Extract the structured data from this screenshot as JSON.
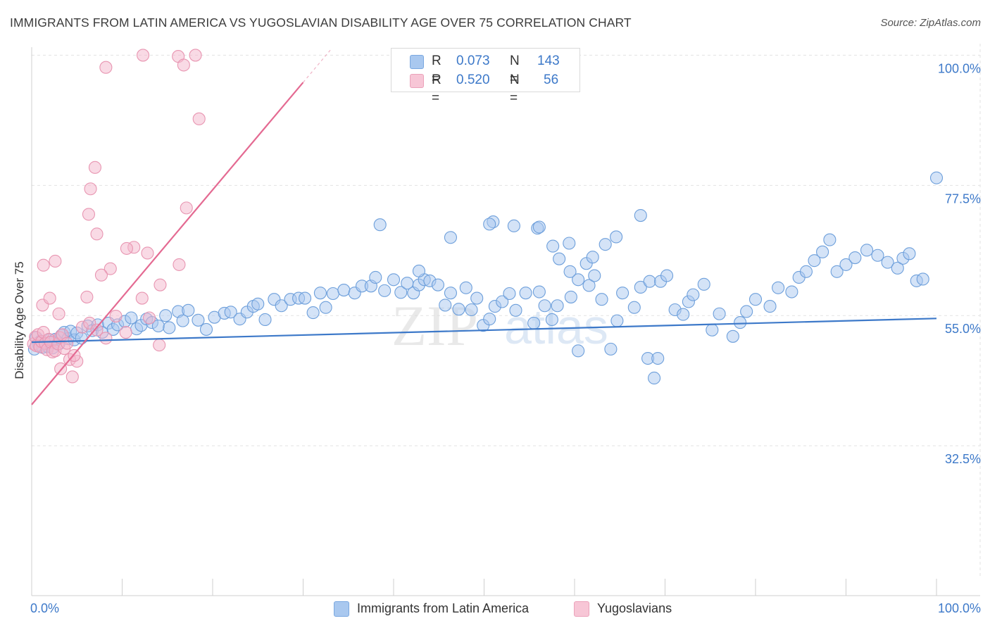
{
  "title": "IMMIGRANTS FROM LATIN AMERICA VS YUGOSLAVIAN DISABILITY AGE OVER 75 CORRELATION CHART",
  "source": "Source: ZipAtlas.com",
  "watermark": {
    "zip": "ZIP",
    "atlas": "atlas"
  },
  "colors": {
    "blue": "#3d79c9",
    "blue_fill": "#a9c8ef",
    "pink": "#e46a92",
    "pink_fill": "#f4b6cb",
    "grid": "#e2e2e2",
    "axis_text": "#3d79c9"
  },
  "legend_top": {
    "rows": [
      {
        "r_label": "R =",
        "r_value": "0.073",
        "n_label": "N =",
        "n_value": "143"
      },
      {
        "r_label": "R =",
        "r_value": "0.520",
        "n_label": "N =",
        "n_value": "56"
      }
    ]
  },
  "legend_bottom": [
    "Immigrants from Latin America",
    "Yugoslavians"
  ],
  "chart_data": {
    "type": "scatter",
    "title": "IMMIGRANTS FROM LATIN AMERICA VS YUGOSLAVIAN DISABILITY AGE OVER 75 CORRELATION CHART",
    "xlabel": "",
    "ylabel": "Disability Age Over 75",
    "xlim": [
      0,
      100
    ],
    "ylim": [
      10,
      102
    ],
    "x_tick_labels": [
      "0.0%",
      "100.0%"
    ],
    "y_ticks": [
      32.5,
      55.0,
      77.5,
      100.0
    ],
    "y_tick_labels": [
      "32.5%",
      "55.0%",
      "77.5%",
      "100.0%"
    ],
    "series": [
      {
        "name": "Immigrants from Latin America",
        "trend": {
          "x": [
            0,
            100
          ],
          "y": [
            50.4,
            54.5
          ]
        },
        "points": [
          [
            0.3,
            49.2
          ],
          [
            0.5,
            51.2
          ],
          [
            0.8,
            49.8
          ],
          [
            1.0,
            50.6
          ],
          [
            1.2,
            49.5
          ],
          [
            1.5,
            50.2
          ],
          [
            1.8,
            49.6
          ],
          [
            2.0,
            50.8
          ],
          [
            2.3,
            49.4
          ],
          [
            2.6,
            50.9
          ],
          [
            3.0,
            50.1
          ],
          [
            3.3,
            51.6
          ],
          [
            3.6,
            52.1
          ],
          [
            4.0,
            51.0
          ],
          [
            4.3,
            52.3
          ],
          [
            4.7,
            50.8
          ],
          [
            5.0,
            52.0
          ],
          [
            5.5,
            51.1
          ],
          [
            6.2,
            53.2
          ],
          [
            6.7,
            52.4
          ],
          [
            7.3,
            53.4
          ],
          [
            7.8,
            52.1
          ],
          [
            8.5,
            53.7
          ],
          [
            9.0,
            52.6
          ],
          [
            9.5,
            53.4
          ],
          [
            10.3,
            54.0
          ],
          [
            11.0,
            54.6
          ],
          [
            11.6,
            52.7
          ],
          [
            12.1,
            53.3
          ],
          [
            12.7,
            54.4
          ],
          [
            13.3,
            53.8
          ],
          [
            14.0,
            53.2
          ],
          [
            14.8,
            55.0
          ],
          [
            15.2,
            52.9
          ],
          [
            16.2,
            55.7
          ],
          [
            16.7,
            54.1
          ],
          [
            17.3,
            55.9
          ],
          [
            18.4,
            54.2
          ],
          [
            19.3,
            52.6
          ],
          [
            20.2,
            54.7
          ],
          [
            21.3,
            55.4
          ],
          [
            22.0,
            55.6
          ],
          [
            23.0,
            54.4
          ],
          [
            23.8,
            55.6
          ],
          [
            24.5,
            56.6
          ],
          [
            25.0,
            57.0
          ],
          [
            25.8,
            54.3
          ],
          [
            26.8,
            57.8
          ],
          [
            27.6,
            56.7
          ],
          [
            28.6,
            57.8
          ],
          [
            29.5,
            58.0
          ],
          [
            30.2,
            58.0
          ],
          [
            31.1,
            55.5
          ],
          [
            31.9,
            58.9
          ],
          [
            32.5,
            56.4
          ],
          [
            33.3,
            58.8
          ],
          [
            34.5,
            59.4
          ],
          [
            35.7,
            58.9
          ],
          [
            36.5,
            60.1
          ],
          [
            37.5,
            60.1
          ],
          [
            38.0,
            61.6
          ],
          [
            39.0,
            59.3
          ],
          [
            40.0,
            61.2
          ],
          [
            40.8,
            59.0
          ],
          [
            41.5,
            60.6
          ],
          [
            42.2,
            58.9
          ],
          [
            42.8,
            60.3
          ],
          [
            43.4,
            61.2
          ],
          [
            44.0,
            61.0
          ],
          [
            44.9,
            60.3
          ],
          [
            45.7,
            56.8
          ],
          [
            46.3,
            58.9
          ],
          [
            47.2,
            56.1
          ],
          [
            48.0,
            59.8
          ],
          [
            48.6,
            56.0
          ],
          [
            49.2,
            58.0
          ],
          [
            49.9,
            53.3
          ],
          [
            50.6,
            54.4
          ],
          [
            51.2,
            56.6
          ],
          [
            52.0,
            57.4
          ],
          [
            52.8,
            58.8
          ],
          [
            53.5,
            55.9
          ],
          [
            54.6,
            58.9
          ],
          [
            55.5,
            53.7
          ],
          [
            56.1,
            59.1
          ],
          [
            56.7,
            56.7
          ],
          [
            57.5,
            54.3
          ],
          [
            58.1,
            56.7
          ],
          [
            59.6,
            58.2
          ],
          [
            60.4,
            61.2
          ],
          [
            61.6,
            60.2
          ],
          [
            62.2,
            61.9
          ],
          [
            63.0,
            57.8
          ],
          [
            64.0,
            49.2
          ],
          [
            64.7,
            54.1
          ],
          [
            65.3,
            58.9
          ],
          [
            66.6,
            56.4
          ],
          [
            67.3,
            59.9
          ],
          [
            68.3,
            60.9
          ],
          [
            69.5,
            60.9
          ],
          [
            70.2,
            61.9
          ],
          [
            71.1,
            56.0
          ],
          [
            72.0,
            55.2
          ],
          [
            72.6,
            57.4
          ],
          [
            73.1,
            58.6
          ],
          [
            74.3,
            60.4
          ],
          [
            75.2,
            52.5
          ],
          [
            76.0,
            55.3
          ],
          [
            77.5,
            51.4
          ],
          [
            78.3,
            53.8
          ],
          [
            79.0,
            55.7
          ],
          [
            80.0,
            57.8
          ],
          [
            81.6,
            56.6
          ],
          [
            82.5,
            59.8
          ],
          [
            84.0,
            59.1
          ],
          [
            84.8,
            61.6
          ],
          [
            85.6,
            62.6
          ],
          [
            86.5,
            64.5
          ],
          [
            87.4,
            66.0
          ],
          [
            88.2,
            68.1
          ],
          [
            89.0,
            62.6
          ],
          [
            90.0,
            63.8
          ],
          [
            91.0,
            65.0
          ],
          [
            92.3,
            66.3
          ],
          [
            93.5,
            65.4
          ],
          [
            94.6,
            64.2
          ],
          [
            95.7,
            63.2
          ],
          [
            96.3,
            64.9
          ],
          [
            97.0,
            65.7
          ],
          [
            97.8,
            61.0
          ],
          [
            98.5,
            61.3
          ],
          [
            60.4,
            48.9
          ],
          [
            59.5,
            62.6
          ],
          [
            61.3,
            64.0
          ],
          [
            62.0,
            65.1
          ],
          [
            63.4,
            67.3
          ],
          [
            64.6,
            68.6
          ],
          [
            58.3,
            64.8
          ],
          [
            57.6,
            67.0
          ],
          [
            100.0,
            78.8
          ],
          [
            55.9,
            70.1
          ],
          [
            56.1,
            70.3
          ],
          [
            59.4,
            67.5
          ],
          [
            68.1,
            47.6
          ],
          [
            68.8,
            44.2
          ],
          [
            69.2,
            47.6
          ],
          [
            67.3,
            72.3
          ],
          [
            53.3,
            70.5
          ],
          [
            51.0,
            71.2
          ],
          [
            42.8,
            62.7
          ],
          [
            38.5,
            70.7
          ],
          [
            46.3,
            68.5
          ],
          [
            50.6,
            70.8
          ]
        ]
      },
      {
        "name": "Yugoslavians",
        "trend": {
          "x": [
            0,
            30
          ],
          "y": [
            39.6,
            95.3
          ]
        },
        "points": [
          [
            0.2,
            50.1
          ],
          [
            0.4,
            51.3
          ],
          [
            0.5,
            49.8
          ],
          [
            0.7,
            51.7
          ],
          [
            0.9,
            49.6
          ],
          [
            1.1,
            50.5
          ],
          [
            1.3,
            52.1
          ],
          [
            1.5,
            50.2
          ],
          [
            1.7,
            49.1
          ],
          [
            1.9,
            50.9
          ],
          [
            2.1,
            50.4
          ],
          [
            2.3,
            48.7
          ],
          [
            2.6,
            48.9
          ],
          [
            2.9,
            50.1
          ],
          [
            3.1,
            51.2
          ],
          [
            3.4,
            51.7
          ],
          [
            3.6,
            49.3
          ],
          [
            3.9,
            50.2
          ],
          [
            4.2,
            47.4
          ],
          [
            4.5,
            44.4
          ],
          [
            5.0,
            47.1
          ],
          [
            5.6,
            53.0
          ],
          [
            6.4,
            53.7
          ],
          [
            7.2,
            52.5
          ],
          [
            8.2,
            51.1
          ],
          [
            9.3,
            54.9
          ],
          [
            10.4,
            52.1
          ],
          [
            12.2,
            58.0
          ],
          [
            14.2,
            60.3
          ],
          [
            13.0,
            54.6
          ],
          [
            1.2,
            56.8
          ],
          [
            3.0,
            55.3
          ],
          [
            4.7,
            48.1
          ],
          [
            2.0,
            58.0
          ],
          [
            6.1,
            58.2
          ],
          [
            7.2,
            69.1
          ],
          [
            6.3,
            72.5
          ],
          [
            11.3,
            66.8
          ],
          [
            10.5,
            66.6
          ],
          [
            8.7,
            63.1
          ],
          [
            7.0,
            80.6
          ],
          [
            6.5,
            76.9
          ],
          [
            14.1,
            49.9
          ],
          [
            16.3,
            63.8
          ],
          [
            12.8,
            65.8
          ],
          [
            18.5,
            89.0
          ],
          [
            17.1,
            73.6
          ],
          [
            1.3,
            63.7
          ],
          [
            2.6,
            64.4
          ],
          [
            7.7,
            62.0
          ],
          [
            3.2,
            45.8
          ],
          [
            8.2,
            97.9
          ],
          [
            16.2,
            99.8
          ],
          [
            12.3,
            100.0
          ],
          [
            18.1,
            100.0
          ],
          [
            16.8,
            98.3
          ]
        ]
      }
    ]
  }
}
